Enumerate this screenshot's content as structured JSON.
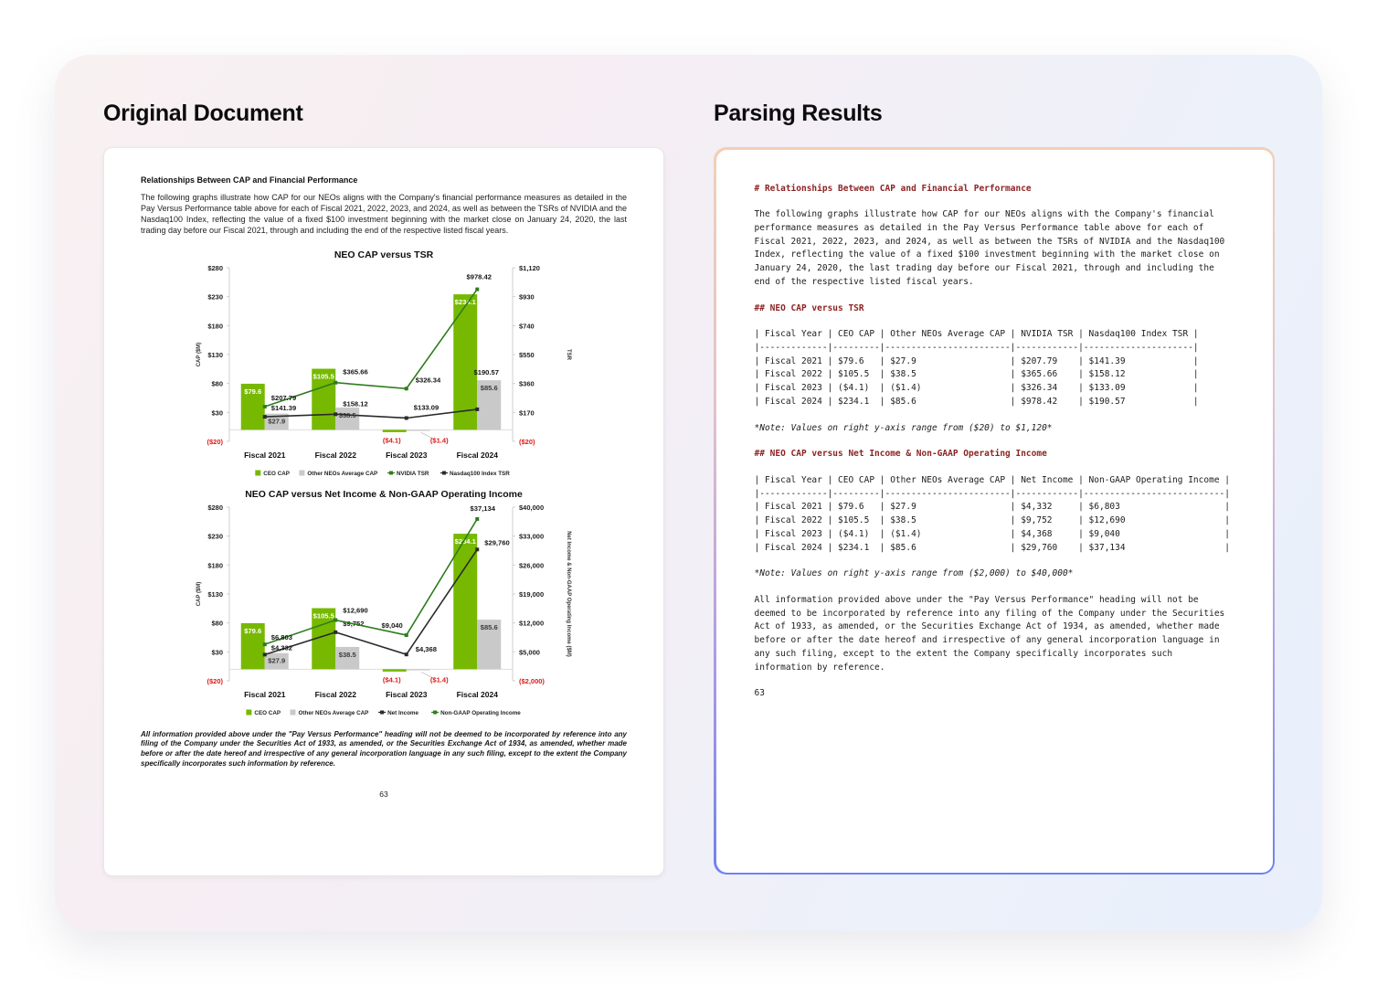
{
  "left_panel": {
    "title": "Original Document"
  },
  "right_panel": {
    "title": "Parsing Results"
  },
  "colors": {
    "md_heading": "#8e2323",
    "negative_red": "#e01818",
    "nvidia_green": "#76b900",
    "bar_gray": "#c9c9c9",
    "line_green": "#2e7d1e",
    "line_black": "#2b2b2b",
    "border_gradient_top": "#f2cfb6",
    "border_gradient_bottom": "#6f82f2"
  },
  "document": {
    "heading": "Relationships Between CAP and Financial Performance",
    "intro": "The following graphs illustrate how CAP for our NEOs aligns with the Company's financial performance measures as detailed in the Pay Versus Performance table above for each of Fiscal 2021, 2022, 2023, and 2024, as well as between the TSRs of NVIDIA and the Nasdaq100 Index, reflecting the value of a fixed $100 investment beginning with the market close on January 24, 2020, the last trading day before our Fiscal 2021, through and including the end of the respective listed fiscal years.",
    "footnote": "All information provided above under the \"Pay Versus Performance\" heading will not be deemed to be incorporated by reference into any filing of the Company under the Securities Act of 1933, as amended, or the Securities Exchange Act of 1934, as amended, whether made before or after the date hereof and irrespective of any general incorporation language in any such filing, except to the extent the Company specifically incorporates such information by reference.",
    "page_number": "63"
  },
  "chart_data": [
    {
      "type": "bar+line",
      "title": "NEO CAP versus TSR",
      "categories": [
        "Fiscal 2021",
        "Fiscal 2022",
        "Fiscal 2023",
        "Fiscal 2024"
      ],
      "left_axis": {
        "label": "CAP ($M)",
        "min": -20,
        "max": 280,
        "ticks": [
          "$280",
          "$230",
          "$180",
          "$130",
          "$80",
          "$30",
          "($20)"
        ]
      },
      "right_axis": {
        "label": "TSR",
        "min": -20,
        "max": 1120,
        "ticks": [
          "$1,120",
          "$930",
          "$740",
          "$550",
          "$360",
          "$170",
          "($20)"
        ]
      },
      "bar_series": [
        {
          "name": "CEO CAP",
          "color": "#76b900",
          "label_color": "#ffffff",
          "values": [
            79.6,
            105.5,
            -4.1,
            234.1
          ],
          "labels": [
            "$79.6",
            "$105.5",
            "($4.1)",
            "$234.1"
          ]
        },
        {
          "name": "Other NEOs Average CAP",
          "color": "#c9c9c9",
          "label_color": "#3c3c3c",
          "values": [
            27.9,
            38.5,
            -1.4,
            85.6
          ],
          "labels": [
            "$27.9",
            "$38.5",
            "($1.4)",
            "$85.6"
          ]
        }
      ],
      "line_series": [
        {
          "name": "NVIDIA TSR",
          "color": "#2e7d1e",
          "values": [
            207.79,
            365.66,
            326.34,
            978.42
          ],
          "labels": [
            "$207.79",
            "$365.66",
            "$326.34",
            "$978.42"
          ],
          "ldx": [
            7,
            8,
            10,
            2
          ],
          "ldy": [
            -7,
            -9,
            -7,
            -11
          ],
          "lanchor": [
            "s",
            "s",
            "s",
            "m"
          ]
        },
        {
          "name": "Nasdaq100 Index TSR",
          "color": "#2b2b2b",
          "values": [
            141.39,
            158.12,
            133.09,
            190.57
          ],
          "labels": [
            "$141.39",
            "$158.12",
            "$133.09",
            "$190.57"
          ],
          "ldx": [
            7,
            8,
            8,
            10
          ],
          "ldy": [
            -7,
            -9,
            -9,
            -38
          ],
          "lanchor": [
            "s",
            "s",
            "s",
            "m"
          ]
        }
      ],
      "negative_color": "#e01818",
      "grid": false,
      "legend_position": "bottom"
    },
    {
      "type": "bar+line",
      "title": "NEO CAP versus Net Income & Non-GAAP Operating Income",
      "categories": [
        "Fiscal 2021",
        "Fiscal 2022",
        "Fiscal 2023",
        "Fiscal 2024"
      ],
      "left_axis": {
        "label": "CAP ($M)",
        "min": -20,
        "max": 280,
        "ticks": [
          "$280",
          "$230",
          "$180",
          "$130",
          "$80",
          "$30",
          "($20)"
        ]
      },
      "right_axis": {
        "label": "Net Income & Non-GAAP Operating Income ($M)",
        "min": -2000,
        "max": 40000,
        "ticks": [
          "$40,000",
          "$33,000",
          "$26,000",
          "$19,000",
          "$12,000",
          "$5,000",
          "($2,000)"
        ]
      },
      "bar_series": [
        {
          "name": "CEO CAP",
          "color": "#76b900",
          "label_color": "#ffffff",
          "values": [
            79.6,
            105.5,
            -4.1,
            234.1
          ],
          "labels": [
            "$79.6",
            "$105.5",
            "($4.1)",
            "$234.1"
          ]
        },
        {
          "name": "Other NEOs Average CAP",
          "color": "#c9c9c9",
          "label_color": "#3c3c3c",
          "values": [
            27.9,
            38.5,
            -1.4,
            85.6
          ],
          "labels": [
            "$27.9",
            "$38.5",
            "($1.4)",
            "$85.6"
          ]
        }
      ],
      "line_series": [
        {
          "name": "Net Income",
          "color": "#2b2b2b",
          "values": [
            4332,
            9752,
            4368,
            29760
          ],
          "labels": [
            "$4,332",
            "$9,752",
            "$4,368",
            "$29,760"
          ],
          "ldx": [
            7,
            8,
            10,
            8
          ],
          "ldy": [
            -5,
            -7,
            -3,
            -5
          ],
          "lanchor": [
            "s",
            "s",
            "s",
            "s"
          ]
        },
        {
          "name": "Non-GAAP Operating Income",
          "color": "#2e7d1e",
          "values": [
            6803,
            12690,
            9040,
            37134
          ],
          "labels": [
            "$6,803",
            "$12,690",
            "$9,040",
            "$37,134"
          ],
          "ldx": [
            7,
            8,
            -4,
            6
          ],
          "ldy": [
            -5,
            -8,
            -8,
            -9
          ],
          "lanchor": [
            "s",
            "s",
            "e",
            "m"
          ]
        }
      ],
      "negative_color": "#e01818",
      "grid": false,
      "legend_position": "bottom"
    }
  ],
  "parsed": {
    "h1": "# Relationships Between CAP and Financial Performance",
    "intro": "The following graphs illustrate how CAP for our NEOs aligns with the Company's financial\nperformance measures as detailed in the Pay Versus Performance table above for each of\nFiscal 2021, 2022, 2023, and 2024, as well as between the TSRs of NVIDIA and the Nasdaq100\nIndex, reflecting the value of a fixed $100 investment beginning with the market close on\nJanuary 24, 2020, the last trading day before our Fiscal 2021, through and including the\nend of the respective listed fiscal years.",
    "h2_tsr": "## NEO CAP versus TSR",
    "table_tsr": {
      "columns": [
        "Fiscal Year",
        "CEO CAP",
        "Other NEOs Average CAP",
        "NVIDIA TSR",
        "Nasdaq100 Index TSR"
      ],
      "rows": [
        [
          "Fiscal 2021",
          "$79.6",
          "$27.9",
          "$207.79",
          "$141.39"
        ],
        [
          "Fiscal 2022",
          "$105.5",
          "$38.5",
          "$365.66",
          "$158.12"
        ],
        [
          "Fiscal 2023",
          "($4.1)",
          "($1.4)",
          "$326.34",
          "$133.09"
        ],
        [
          "Fiscal 2024",
          "$234.1",
          "$85.6",
          "$978.42",
          "$190.57"
        ]
      ]
    },
    "note_tsr": "*Note: Values on right y-axis range from ($20) to $1,120*",
    "h2_ni": "## NEO CAP versus Net Income & Non-GAAP Operating Income",
    "table_ni": {
      "columns": [
        "Fiscal Year",
        "CEO CAP",
        "Other NEOs Average CAP",
        "Net Income",
        "Non-GAAP Operating Income"
      ],
      "rows": [
        [
          "Fiscal 2021",
          "$79.6",
          "$27.9",
          "$4,332",
          "$6,803"
        ],
        [
          "Fiscal 2022",
          "$105.5",
          "$38.5",
          "$9,752",
          "$12,690"
        ],
        [
          "Fiscal 2023",
          "($4.1)",
          "($1.4)",
          "$4,368",
          "$9,040"
        ],
        [
          "Fiscal 2024",
          "$234.1",
          "$85.6",
          "$29,760",
          "$37,134"
        ]
      ]
    },
    "note_ni": "*Note: Values on right y-axis range from ($2,000) to $40,000*",
    "outro": "All information provided above under the \"Pay Versus Performance\" heading will not be\ndeemed to be incorporated by reference into any filing of the Company under the Securities\nAct of 1933, as amended, or the Securities Exchange Act of 1934, as amended, whether made\nbefore or after the date hereof and irrespective of any general incorporation language in\nany such filing, except to the extent the Company specifically incorporates such\ninformation by reference.",
    "page_number": "63"
  }
}
